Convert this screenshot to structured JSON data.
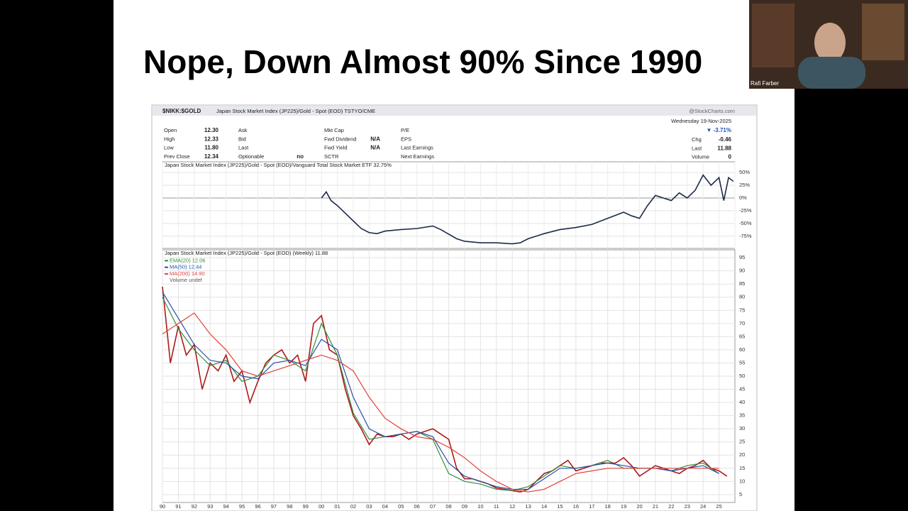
{
  "slide": {
    "title": "Nope, Down Almost 90% Since 1990"
  },
  "webcam": {
    "name": "Rafi Farber"
  },
  "chart_header": {
    "symbol": "$NIKK:$GOLD",
    "description": "Japan Stock Market Index (JP225)/Gold - Spot (EOD) TSTYO/CME",
    "source": "@StockCharts.com",
    "date": "Wednesday 19-Nov-2025",
    "change": "▼ -3.71%",
    "columns": [
      [
        {
          "label": "Open",
          "value": "12.30"
        },
        {
          "label": "High",
          "value": "12.33"
        },
        {
          "label": "Low",
          "value": "11.80"
        },
        {
          "label": "Prev Close",
          "value": "12.34"
        }
      ],
      [
        {
          "label": "Ask"
        },
        {
          "label": "Bid"
        },
        {
          "label": "Last"
        },
        {
          "label": "Optionable",
          "value": "no"
        }
      ],
      [
        {
          "label": "Mkt Cap"
        },
        {
          "label": "Fwd Dividend",
          "value": "N/A"
        },
        {
          "label": "Fwd Yield",
          "value": "N/A"
        },
        {
          "label": "SCTR"
        }
      ],
      [
        {
          "label": "P/E"
        },
        {
          "label": "EPS"
        },
        {
          "label": "Last Earnings"
        },
        {
          "label": "Next Earnings"
        }
      ],
      [
        {
          "label": "Chg",
          "value": "-0.46"
        },
        {
          "label": "Last",
          "value": "11.88"
        },
        {
          "label": "Volume",
          "value": "0"
        }
      ]
    ]
  },
  "chart_data": [
    {
      "type": "line",
      "title": "Japan Stock Market Index (JP225)/Gold - Spot (EOD)/Vanguard Total Stock Market ETF 32.75%",
      "xlim": [
        1990,
        2026
      ],
      "ylim": [
        -99,
        71
      ],
      "yticks": [
        {
          "value": 50,
          "label": "50%"
        },
        {
          "value": 25,
          "label": "25%"
        },
        {
          "value": 0,
          "label": "0%"
        },
        {
          "value": -25,
          "label": "-25%"
        },
        {
          "value": -50,
          "label": "-50%"
        },
        {
          "value": -75,
          "label": "-75%"
        }
      ],
      "grid": true,
      "series": [
        {
          "name": "Japan Stock Market Index (JP225)/Gold - Spot (EOD)/Vanguard Total Stock Market ETF",
          "color": "#1c2a4a",
          "x": [
            2000,
            2000.3,
            2000.6,
            2001,
            2001.5,
            2002,
            2002.5,
            2003,
            2003.5,
            2004,
            2005,
            2006,
            2007,
            2007.5,
            2008.5,
            2009,
            2010,
            2011,
            2012,
            2012.5,
            2013,
            2014,
            2015,
            2016,
            2017,
            2018,
            2019,
            2019.5,
            2020,
            2020.5,
            2021,
            2021.5,
            2022,
            2022.5,
            2023,
            2023.5,
            2024,
            2024.5,
            2025,
            2025.3,
            2025.6,
            2025.9
          ],
          "values": [
            0,
            12,
            -5,
            -15,
            -30,
            -45,
            -60,
            -68,
            -70,
            -65,
            -62,
            -60,
            -55,
            -62,
            -80,
            -85,
            -88,
            -88,
            -90,
            -88,
            -80,
            -70,
            -62,
            -58,
            -52,
            -40,
            -28,
            -35,
            -40,
            -15,
            5,
            0,
            -5,
            10,
            0,
            15,
            45,
            25,
            40,
            -5,
            40,
            32.75
          ]
        }
      ]
    },
    {
      "type": "line",
      "title": "Japan Stock Market Index (JP225)/Gold - Spot (EOD) (Weekly) 11.88",
      "volume_note": "Volume undef",
      "xlim": [
        1990,
        2026
      ],
      "ylim": [
        2,
        98
      ],
      "yticks": [
        95,
        90,
        85,
        80,
        75,
        70,
        65,
        60,
        55,
        50,
        45,
        40,
        35,
        30,
        25,
        20,
        15,
        10,
        5
      ],
      "xticks": [
        {
          "value": 1990,
          "label": "90"
        },
        {
          "value": 1991,
          "label": "91"
        },
        {
          "value": 1992,
          "label": "92"
        },
        {
          "value": 1993,
          "label": "93"
        },
        {
          "value": 1994,
          "label": "94"
        },
        {
          "value": 1995,
          "label": "95"
        },
        {
          "value": 1996,
          "label": "96"
        },
        {
          "value": 1997,
          "label": "97"
        },
        {
          "value": 1998,
          "label": "98"
        },
        {
          "value": 1999,
          "label": "99"
        },
        {
          "value": 2000,
          "label": "00"
        },
        {
          "value": 2001,
          "label": "01"
        },
        {
          "value": 2002,
          "label": "02"
        },
        {
          "value": 2003,
          "label": "03"
        },
        {
          "value": 2004,
          "label": "04"
        },
        {
          "value": 2005,
          "label": "05"
        },
        {
          "value": 2006,
          "label": "06"
        },
        {
          "value": 2007,
          "label": "07"
        },
        {
          "value": 2008,
          "label": "08"
        },
        {
          "value": 2009,
          "label": "09"
        },
        {
          "value": 2010,
          "label": "10"
        },
        {
          "value": 2011,
          "label": "11"
        },
        {
          "value": 2012,
          "label": "12"
        },
        {
          "value": 2013,
          "label": "13"
        },
        {
          "value": 2014,
          "label": "14"
        },
        {
          "value": 2015,
          "label": "15"
        },
        {
          "value": 2016,
          "label": "16"
        },
        {
          "value": 2017,
          "label": "17"
        },
        {
          "value": 2018,
          "label": "18"
        },
        {
          "value": 2019,
          "label": "19"
        },
        {
          "value": 2020,
          "label": "20"
        },
        {
          "value": 2021,
          "label": "21"
        },
        {
          "value": 2022,
          "label": "22"
        },
        {
          "value": 2023,
          "label": "23"
        },
        {
          "value": 2024,
          "label": "24"
        },
        {
          "value": 2025,
          "label": "25"
        }
      ],
      "grid": true,
      "series": [
        {
          "name": "$NIKK:$GOLD",
          "color": "#b01818",
          "x": [
            1990,
            1990.5,
            1991,
            1991.5,
            1992,
            1992.5,
            1993,
            1993.5,
            1994,
            1994.5,
            1995,
            1995.5,
            1996,
            1996.5,
            1997,
            1997.5,
            1998,
            1998.5,
            1999,
            1999.5,
            2000,
            2000.5,
            2001,
            2001.5,
            2002,
            2002.5,
            2003,
            2003.5,
            2004,
            2004.5,
            2005,
            2005.5,
            2006,
            2006.5,
            2007,
            2007.5,
            2008,
            2008.5,
            2009,
            2009.5,
            2010,
            2010.5,
            2011,
            2011.5,
            2012,
            2012.5,
            2013,
            2013.5,
            2014,
            2014.5,
            2015,
            2015.5,
            2016,
            2016.5,
            2017,
            2017.5,
            2018,
            2018.5,
            2019,
            2019.5,
            2020,
            2020.5,
            2021,
            2021.5,
            2022,
            2022.5,
            2023,
            2023.5,
            2024,
            2024.5,
            2025,
            2025.5
          ],
          "values": [
            84,
            55,
            69,
            58,
            62,
            45,
            55,
            52,
            58,
            48,
            52,
            40,
            48,
            55,
            58,
            60,
            55,
            58,
            48,
            70,
            73,
            60,
            58,
            45,
            35,
            30,
            24,
            28,
            27,
            27,
            28,
            26,
            28,
            29,
            30,
            28,
            26,
            15,
            11,
            11,
            10,
            9,
            7.5,
            7,
            6.5,
            6,
            7,
            10,
            13,
            14,
            16,
            18,
            14,
            15,
            16,
            17,
            17,
            17,
            19,
            16,
            12,
            14,
            16,
            15,
            14,
            13,
            15,
            16,
            18,
            15,
            14,
            12
          ]
        },
        {
          "name": "EMA(20) 12.06",
          "color": "#2f8f3f",
          "x": [
            1990,
            1991,
            1992,
            1993,
            1994,
            1995,
            1996,
            1997,
            1998,
            1999,
            2000,
            2001,
            2002,
            2003,
            2004,
            2005,
            2006,
            2007,
            2008,
            2009,
            2010,
            2011,
            2012,
            2013,
            2014,
            2015,
            2016,
            2017,
            2018,
            2019,
            2020,
            2021,
            2022,
            2023,
            2024,
            2025
          ],
          "values": [
            80,
            68,
            60,
            54,
            56,
            48,
            50,
            58,
            56,
            52,
            70,
            58,
            36,
            26,
            27,
            28,
            29,
            26,
            13,
            10,
            9,
            7,
            6.5,
            8,
            12,
            16,
            15,
            16,
            18,
            15,
            15,
            15,
            14,
            16,
            17,
            13
          ]
        },
        {
          "name": "MA(50) 12.44",
          "color": "#2a4fa8",
          "x": [
            1990,
            1991,
            1992,
            1993,
            1994,
            1995,
            1996,
            1997,
            1998,
            1999,
            2000,
            2001,
            2002,
            2003,
            2004,
            2005,
            2006,
            2007,
            2008,
            2009,
            2010,
            2011,
            2012,
            2013,
            2014,
            2015,
            2016,
            2017,
            2018,
            2019,
            2020,
            2021,
            2022,
            2023,
            2024,
            2025
          ],
          "values": [
            82,
            72,
            62,
            56,
            55,
            50,
            49,
            55,
            56,
            54,
            64,
            60,
            42,
            30,
            27,
            28,
            29,
            27,
            17,
            12,
            10,
            8,
            7,
            7,
            11,
            15,
            15,
            16,
            17,
            16,
            15,
            15,
            14,
            15,
            16,
            13
          ]
        },
        {
          "name": "MA(200) 14.90",
          "color": "#e0403a",
          "x": [
            1990,
            1991,
            1992,
            1993,
            1994,
            1995,
            1996,
            1997,
            1998,
            1999,
            2000,
            2001,
            2002,
            2003,
            2004,
            2005,
            2006,
            2007,
            2008,
            2009,
            2010,
            2011,
            2012,
            2013,
            2014,
            2015,
            2016,
            2017,
            2018,
            2019,
            2020,
            2021,
            2022,
            2023,
            2024,
            2025
          ],
          "values": [
            66,
            70,
            74,
            66,
            60,
            52,
            50,
            52,
            54,
            56,
            58,
            56,
            52,
            42,
            34,
            30,
            27,
            26,
            23,
            19,
            14,
            10,
            7,
            6,
            7,
            10,
            13,
            14,
            15,
            15,
            15,
            15,
            15,
            15,
            15,
            15
          ]
        }
      ]
    }
  ]
}
